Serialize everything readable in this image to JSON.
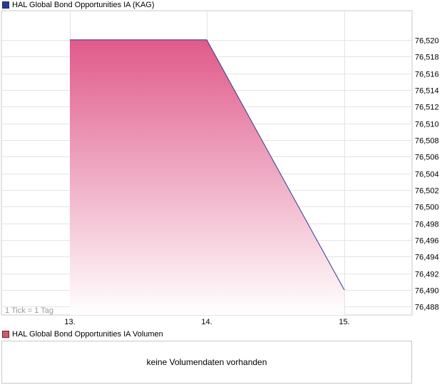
{
  "price_legend": {
    "label": "HAL Global Bond Opportunities IA (KAG)",
    "color": "#2b3a8f"
  },
  "volume_legend": {
    "label": "HAL Global Bond Opportunities IA Volumen",
    "color": "#d05a6e"
  },
  "tick_note": "1 Tick = 1 Tag",
  "volume_panel": {
    "message": "keine Volumendaten vorhanden"
  },
  "chart_data": {
    "type": "area",
    "x": [
      "13.",
      "14.",
      "15."
    ],
    "series": [
      {
        "name": "HAL Global Bond Opportunities IA (KAG)",
        "values": [
          76.52,
          76.52,
          76.49
        ]
      }
    ],
    "ylim": [
      76.487,
      76.5235
    ],
    "yticks": [
      76.52,
      76.518,
      76.516,
      76.514,
      76.512,
      76.51,
      76.508,
      76.506,
      76.504,
      76.502,
      76.5,
      76.498,
      76.496,
      76.494,
      76.492,
      76.49,
      76.488
    ],
    "ytick_labels": [
      "76,520",
      "76,518",
      "76,516",
      "76,514",
      "76,512",
      "76,510",
      "76,508",
      "76,506",
      "76,504",
      "76,502",
      "76,500",
      "76,498",
      "76,496",
      "76,494",
      "76,492",
      "76,490",
      "76,488"
    ],
    "grid": true,
    "y_axis_position": "right",
    "line_color": "#2b3a8f",
    "fill_top_color": "#e05a8a",
    "fill_bottom_color": "#ffffff"
  }
}
